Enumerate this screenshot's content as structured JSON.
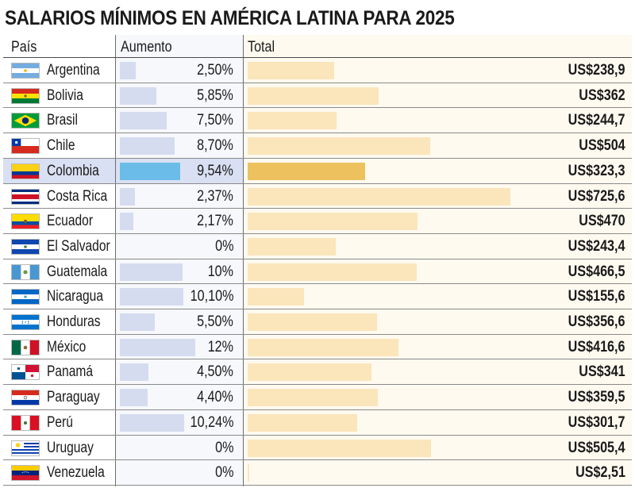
{
  "title": "SALARIOS MÍNIMOS EN AMÉRICA LATINA PARA 2025",
  "headers": {
    "country": "País",
    "increase": "Aumento",
    "total": "Total"
  },
  "colors": {
    "increase_bar": "#d5dcef",
    "increase_bar_highlight": "#6bbce9",
    "total_bar": "#fbe5ba",
    "total_bar_highlight": "#edc15e",
    "row_highlight": "#d9e0f3",
    "total_column_bg": "#fffaf0"
  },
  "chart_data": {
    "type": "bar",
    "title": "SALARIOS MÍNIMOS EN AMÉRICA LATINA PARA 2025",
    "categories": [
      "Argentina",
      "Bolivia",
      "Brasil",
      "Chile",
      "Colombia",
      "Costa Rica",
      "Ecuador",
      "El Salvador",
      "Guatemala",
      "Nicaragua",
      "Honduras",
      "México",
      "Panamá",
      "Paraguay",
      "Perú",
      "Uruguay",
      "Venezuela"
    ],
    "highlight": "Colombia",
    "series": [
      {
        "name": "Aumento",
        "unit": "%",
        "max": 12,
        "values": [
          2.5,
          5.85,
          7.5,
          8.7,
          9.54,
          2.37,
          2.17,
          0,
          10,
          10.1,
          5.5,
          12,
          4.5,
          4.4,
          10.24,
          0,
          0
        ],
        "labels": [
          "2,50%",
          "5,85%",
          "7,50%",
          "8,70%",
          "9,54%",
          "2,37%",
          "2,17%",
          "0%",
          "10%",
          "10,10%",
          "5,50%",
          "12%",
          "4,50%",
          "4,40%",
          "10,24%",
          "0%",
          "0%"
        ]
      },
      {
        "name": "Total",
        "unit": "US$",
        "max": 725.6,
        "values": [
          238.9,
          362,
          244.7,
          504,
          323.3,
          725.6,
          470,
          243.4,
          466.5,
          155.6,
          356.6,
          416.6,
          341,
          359.5,
          301.7,
          505.4,
          2.51
        ],
        "labels": [
          "US$238,9",
          "US$362",
          "US$244,7",
          "US$504",
          "US$323,3",
          "US$725,6",
          "US$470",
          "US$243,4",
          "US$466,5",
          "US$155,6",
          "US$356,6",
          "US$416,6",
          "US$341",
          "US$359,5",
          "US$301,7",
          "US$505,4",
          "US$2,51"
        ]
      }
    ]
  },
  "flags": [
    "argentina-flag",
    "bolivia-flag",
    "brazil-flag",
    "chile-flag",
    "colombia-flag",
    "costa-rica-flag",
    "ecuador-flag",
    "el-salvador-flag",
    "guatemala-flag",
    "nicaragua-flag",
    "honduras-flag",
    "mexico-flag",
    "panama-flag",
    "paraguay-flag",
    "peru-flag",
    "uruguay-flag",
    "venezuela-flag"
  ]
}
